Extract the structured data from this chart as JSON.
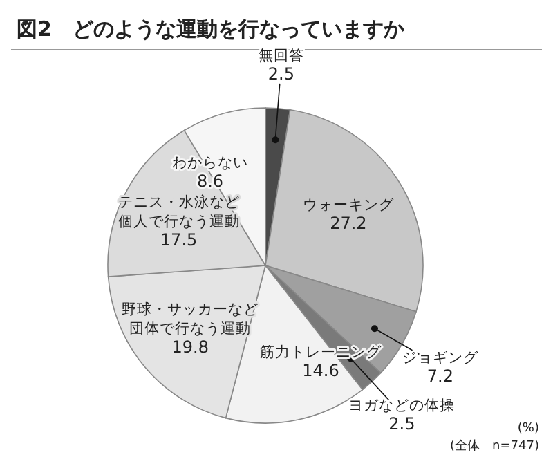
{
  "chart_data": {
    "type": "pie",
    "title": "図2　どのような運動を行なっていますか",
    "categories": [
      "無回答",
      "ウォーキング",
      "ジョギング",
      "ヨガなどの体操",
      "筋力トレーニング",
      "野球・サッカーなど団体で行なう運動",
      "テニス・水泳など個人で行なう運動",
      "わからない"
    ],
    "values": [
      2.5,
      27.2,
      7.2,
      2.5,
      14.6,
      19.8,
      17.5,
      8.6
    ],
    "colors": [
      "#4a4a4a",
      "#c8c8c8",
      "#a0a0a0",
      "#7a7a7a",
      "#f2f2f2",
      "#e4e4e4",
      "#dcdcdc",
      "#f6f6f6"
    ],
    "data_labels": true,
    "annotations": [
      "(%)",
      "(全体　n=747)"
    ]
  }
}
